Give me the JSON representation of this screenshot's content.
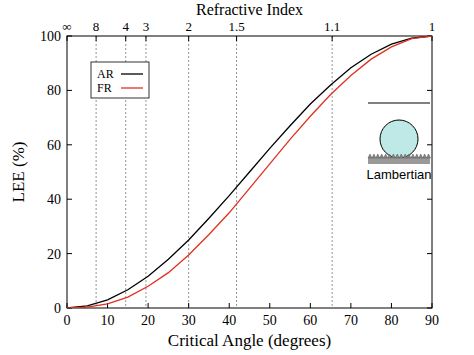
{
  "chart_data": {
    "type": "line",
    "title": "Refractive Index",
    "x_label": "Critical Angle (degrees)",
    "y_label": "LEE (%)",
    "x": [
      0,
      5,
      10,
      15,
      20,
      25,
      30,
      35,
      40,
      45,
      50,
      55,
      60,
      65,
      70,
      75,
      80,
      85,
      90
    ],
    "series": [
      {
        "name": "AR",
        "color": "#000000",
        "values": [
          0,
          0.8,
          3,
          6.7,
          11.7,
          17.9,
          25,
          33,
          41.3,
          50,
          58.7,
          67,
          75,
          82,
          88.3,
          93.3,
          97,
          99.2,
          100
        ]
      },
      {
        "name": "FR",
        "color": "#e03020",
        "values": [
          0,
          0.3,
          1.5,
          4,
          8,
          13,
          19.5,
          27,
          35,
          44,
          53,
          62,
          70.5,
          78.5,
          85.5,
          91.5,
          96,
          99,
          100
        ]
      }
    ],
    "xlim": [
      0,
      90
    ],
    "ylim": [
      0,
      100
    ],
    "xticks": [
      0,
      10,
      20,
      30,
      40,
      50,
      60,
      70,
      80,
      90
    ],
    "yticks": [
      0,
      20,
      40,
      60,
      80,
      100
    ],
    "x2ticks": [
      {
        "value": 0,
        "label": "∞"
      },
      {
        "value": 7.18,
        "label": "8"
      },
      {
        "value": 14.48,
        "label": "4"
      },
      {
        "value": 19.47,
        "label": "3"
      },
      {
        "value": 30,
        "label": "2"
      },
      {
        "value": 41.81,
        "label": "1.5"
      },
      {
        "value": 65.38,
        "label": "1.1"
      },
      {
        "value": 90,
        "label": "1"
      }
    ],
    "legend": "upper left",
    "annotations": [
      "Lambertian"
    ]
  }
}
